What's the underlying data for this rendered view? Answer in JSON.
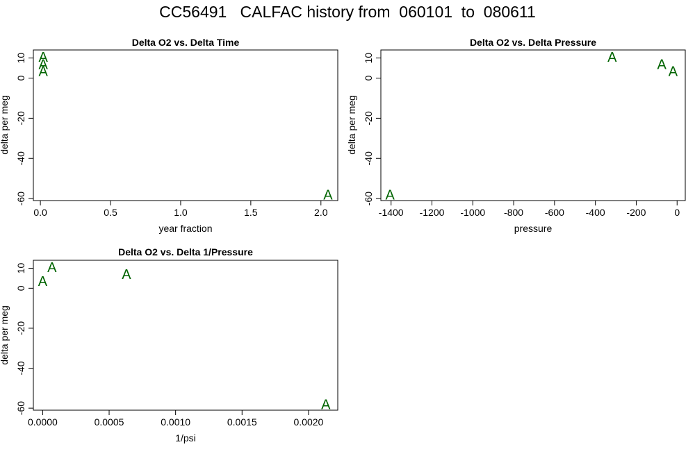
{
  "header": {
    "title": "CC56491   CALFAC history from  060101  to  080611"
  },
  "colors": {
    "points": "#006400",
    "axes": "#000000",
    "background": "#ffffff"
  },
  "chart_data": [
    {
      "type": "scatter",
      "title": "Delta O2 vs. Delta Time",
      "xlabel": "year fraction",
      "ylabel": "delta per meg",
      "marker": "A",
      "xlim": [
        -0.05,
        2.12
      ],
      "ylim": [
        -61,
        14
      ],
      "xticks": [
        0.0,
        0.5,
        1.0,
        1.5,
        2.0
      ],
      "xtick_labels": [
        "0.0",
        "0.5",
        "1.0",
        "1.5",
        "2.0"
      ],
      "yticks": [
        10,
        0,
        -20,
        -40,
        -60
      ],
      "ytick_labels": [
        "10",
        "0",
        "-20",
        "-40",
        "-60"
      ],
      "grid": false,
      "points": [
        {
          "x": 0.02,
          "y": 10.5
        },
        {
          "x": 0.02,
          "y": 7
        },
        {
          "x": 0.02,
          "y": 3.5
        },
        {
          "x": 2.05,
          "y": -58
        }
      ]
    },
    {
      "type": "scatter",
      "title": "Delta O2 vs. Delta Pressure",
      "xlabel": "pressure",
      "ylabel": "delta per meg",
      "marker": "A",
      "xlim": [
        -1450,
        40
      ],
      "ylim": [
        -61,
        14
      ],
      "xticks": [
        -1400,
        -1200,
        -1000,
        -800,
        -600,
        -400,
        -200,
        0
      ],
      "xtick_labels": [
        "-1400",
        "-1200",
        "-1000",
        "-800",
        "-600",
        "-400",
        "-200",
        "0"
      ],
      "yticks": [
        10,
        0,
        -20,
        -40,
        -60
      ],
      "ytick_labels": [
        "10",
        "0",
        "-20",
        "-40",
        "-60"
      ],
      "grid": false,
      "points": [
        {
          "x": -318,
          "y": 10.5
        },
        {
          "x": -75,
          "y": 7
        },
        {
          "x": -20,
          "y": 3.5
        },
        {
          "x": -1405,
          "y": -58
        }
      ]
    },
    {
      "type": "scatter",
      "title": "Delta O2 vs. Delta 1/Pressure",
      "xlabel": "1/psi",
      "ylabel": "delta per meg",
      "marker": "A",
      "xlim": [
        -7e-05,
        0.00222
      ],
      "ylim": [
        -61,
        14
      ],
      "xticks": [
        0.0,
        0.0005,
        0.001,
        0.0015,
        0.002
      ],
      "xtick_labels": [
        "0.0000",
        "0.0005",
        "0.0010",
        "0.0015",
        "0.0020"
      ],
      "yticks": [
        10,
        0,
        -20,
        -40,
        -60
      ],
      "ytick_labels": [
        "10",
        "0",
        "-20",
        "-40",
        "-60"
      ],
      "grid": false,
      "points": [
        {
          "x": 7e-05,
          "y": 10.5
        },
        {
          "x": 0.00063,
          "y": 7
        },
        {
          "x": 0.0,
          "y": 3.5
        },
        {
          "x": 0.00213,
          "y": -58
        }
      ]
    }
  ]
}
